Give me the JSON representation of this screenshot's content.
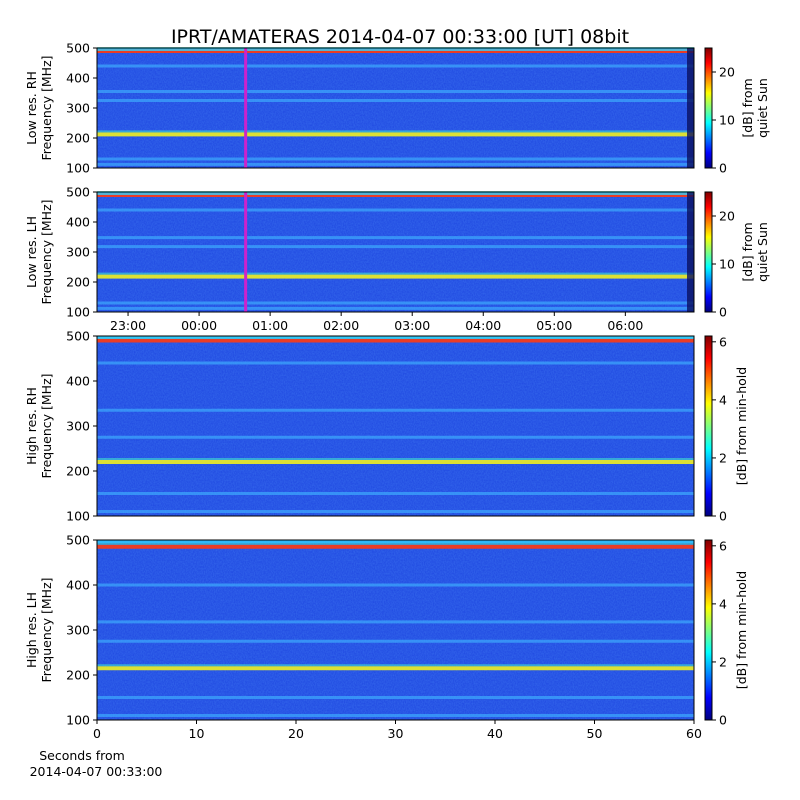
{
  "title": "IPRT/AMATERAS 2014-04-07 00:33:00 [UT]   08bit",
  "footer": {
    "line1": "Seconds from",
    "line2": "2014-04-07 00:33:00"
  },
  "chart_data": [
    {
      "type": "heatmap",
      "panel": "low-res-rh",
      "ylabel_lines": [
        "Low res. RH",
        "Frequency [MHz]"
      ],
      "yticks": [
        100,
        200,
        300,
        400,
        500
      ],
      "ylim": [
        100,
        500
      ],
      "colorbar": {
        "label_lines": [
          "[dB] from",
          "quiet Sun"
        ],
        "ticks": [
          0,
          10,
          20
        ],
        "range": [
          0,
          25
        ]
      },
      "bands_mhz": [
        490,
        440,
        355,
        325,
        212,
        130,
        112
      ],
      "marker": {
        "time": "00:33",
        "color": "#cc22cc"
      }
    },
    {
      "type": "heatmap",
      "panel": "low-res-lh",
      "ylabel_lines": [
        "Low res. LH",
        "Frequency [MHz]"
      ],
      "yticks": [
        100,
        200,
        300,
        400,
        500
      ],
      "ylim": [
        100,
        500
      ],
      "xticks": [
        "23:00",
        "00:00",
        "01:00",
        "02:00",
        "03:00",
        "04:00",
        "05:00",
        "06:00"
      ],
      "colorbar": {
        "label_lines": [
          "[dB] from",
          "quiet Sun"
        ],
        "ticks": [
          0,
          10,
          20
        ],
        "range": [
          0,
          25
        ]
      },
      "bands_mhz": [
        490,
        440,
        348,
        318,
        218,
        130,
        112
      ],
      "marker": {
        "time": "00:33",
        "color": "#cc22cc"
      }
    },
    {
      "type": "heatmap",
      "panel": "high-res-rh",
      "ylabel_lines": [
        "High res. RH",
        "Frequency [MHz]"
      ],
      "yticks": [
        100,
        200,
        300,
        400,
        500
      ],
      "ylim": [
        100,
        500
      ],
      "colorbar": {
        "label_lines": [
          "[dB] from min-hold"
        ],
        "ticks": [
          0,
          2,
          4,
          6
        ],
        "range": [
          0,
          6.2
        ]
      },
      "bands_mhz": [
        490,
        440,
        335,
        275,
        220,
        150,
        110
      ]
    },
    {
      "type": "heatmap",
      "panel": "high-res-lh",
      "ylabel_lines": [
        "High res. LH",
        "Frequency [MHz]"
      ],
      "yticks": [
        100,
        200,
        300,
        400,
        500
      ],
      "ylim": [
        100,
        500
      ],
      "xlim": [
        0,
        60
      ],
      "xticks": [
        0,
        10,
        20,
        30,
        40,
        50,
        60
      ],
      "colorbar": {
        "label_lines": [
          "[dB] from min-hold"
        ],
        "ticks": [
          0,
          2,
          4,
          6
        ],
        "range": [
          0,
          6.2
        ]
      },
      "bands_mhz": [
        485,
        400,
        318,
        275,
        215,
        150,
        110
      ]
    }
  ]
}
